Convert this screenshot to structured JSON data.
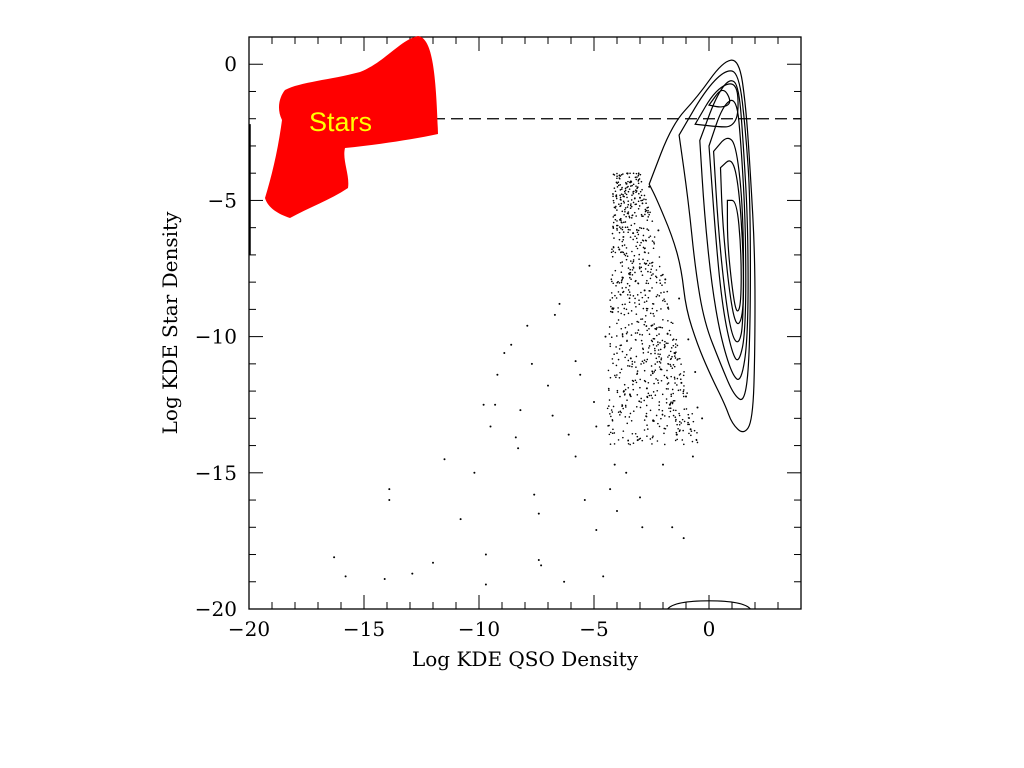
{
  "chart_data": {
    "type": "scatter",
    "xlabel": "Log KDE QSO Density",
    "ylabel": "Log KDE Star Density",
    "xlim": [
      -20,
      4
    ],
    "ylim": [
      -20,
      1
    ],
    "xticks": [
      -20,
      -15,
      -10,
      -5,
      0
    ],
    "yticks": [
      0,
      -5,
      -10,
      -15,
      -20
    ],
    "tick_labels_x": [
      "−20",
      "−15",
      "−10",
      "−5",
      "0"
    ],
    "tick_labels_y": [
      "0",
      "−5",
      "−10",
      "−15",
      "−20"
    ],
    "grid": false,
    "legend": "none",
    "threshold_line": {
      "y": -2,
      "style": "dashed"
    },
    "annotation": {
      "text": "Stars",
      "fill_color": "#ff0000",
      "text_color": "#ffff00"
    },
    "scatter_points": [
      [
        -16.3,
        -18.1
      ],
      [
        -15.8,
        -18.8
      ],
      [
        -13.9,
        -15.6
      ],
      [
        -13.9,
        -16.0
      ],
      [
        -14.1,
        -18.9
      ],
      [
        -12.9,
        -18.7
      ],
      [
        -12.0,
        -18.3
      ],
      [
        -11.5,
        -14.5
      ],
      [
        -10.8,
        -16.7
      ],
      [
        -10.2,
        -15.0
      ],
      [
        -9.7,
        -18.0
      ],
      [
        -9.7,
        -19.1
      ],
      [
        -9.8,
        -12.5
      ],
      [
        -9.5,
        -13.3
      ],
      [
        -9.3,
        -12.5
      ],
      [
        -9.2,
        -11.4
      ],
      [
        -8.6,
        -10.3
      ],
      [
        -8.9,
        -10.6
      ],
      [
        -8.4,
        -13.7
      ],
      [
        -8.3,
        -14.1
      ],
      [
        -8.2,
        -12.7
      ],
      [
        -7.9,
        -9.6
      ],
      [
        -7.7,
        -11.0
      ],
      [
        -7.6,
        -15.8
      ],
      [
        -7.4,
        -16.5
      ],
      [
        -7.4,
        -18.2
      ],
      [
        -7.3,
        -18.4
      ],
      [
        -7.0,
        -11.8
      ],
      [
        -6.8,
        -12.9
      ],
      [
        -6.7,
        -9.2
      ],
      [
        -6.5,
        -8.8
      ],
      [
        -6.3,
        -19.0
      ],
      [
        -6.1,
        -13.6
      ],
      [
        -5.8,
        -14.4
      ],
      [
        -5.8,
        -10.9
      ],
      [
        -5.6,
        -11.4
      ],
      [
        -5.4,
        -16.0
      ],
      [
        -5.2,
        -7.4
      ],
      [
        -5.0,
        -12.4
      ],
      [
        -4.9,
        -13.3
      ],
      [
        -4.9,
        -17.1
      ],
      [
        -4.6,
        -18.8
      ],
      [
        -4.5,
        -10.0
      ],
      [
        -4.3,
        -15.6
      ],
      [
        -4.2,
        -9.1
      ],
      [
        -4.1,
        -14.7
      ],
      [
        -4.0,
        -16.4
      ],
      [
        -3.9,
        -6.8
      ],
      [
        -3.7,
        -12.0
      ],
      [
        -3.6,
        -15.0
      ],
      [
        -3.4,
        -10.8
      ],
      [
        -3.3,
        -6.2
      ],
      [
        -3.1,
        -13.8
      ],
      [
        -3.0,
        -15.9
      ],
      [
        -3.0,
        -4.9
      ],
      [
        -2.9,
        -17.0
      ],
      [
        -2.8,
        -8.3
      ],
      [
        -2.7,
        -11.9
      ],
      [
        -2.6,
        -4.5
      ],
      [
        -2.5,
        -9.6
      ],
      [
        -2.4,
        -13.1
      ],
      [
        -2.2,
        -6.1
      ],
      [
        -2.1,
        -11.2
      ],
      [
        -2.0,
        -14.7
      ],
      [
        -1.9,
        -7.9
      ],
      [
        -1.8,
        -9.9
      ],
      [
        -1.7,
        -12.5
      ],
      [
        -1.6,
        -17.0
      ],
      [
        -1.5,
        -10.6
      ],
      [
        -1.4,
        -13.6
      ],
      [
        -1.3,
        -8.6
      ],
      [
        -1.2,
        -11.7
      ],
      [
        -1.1,
        -17.4
      ],
      [
        -1.0,
        -12.2
      ],
      [
        -0.9,
        -10.1
      ],
      [
        -0.8,
        -13.4
      ],
      [
        -0.7,
        -14.4
      ],
      [
        -0.6,
        -11.3
      ],
      [
        -0.5,
        -12.6
      ],
      [
        -0.3,
        -13.0
      ]
    ]
  }
}
